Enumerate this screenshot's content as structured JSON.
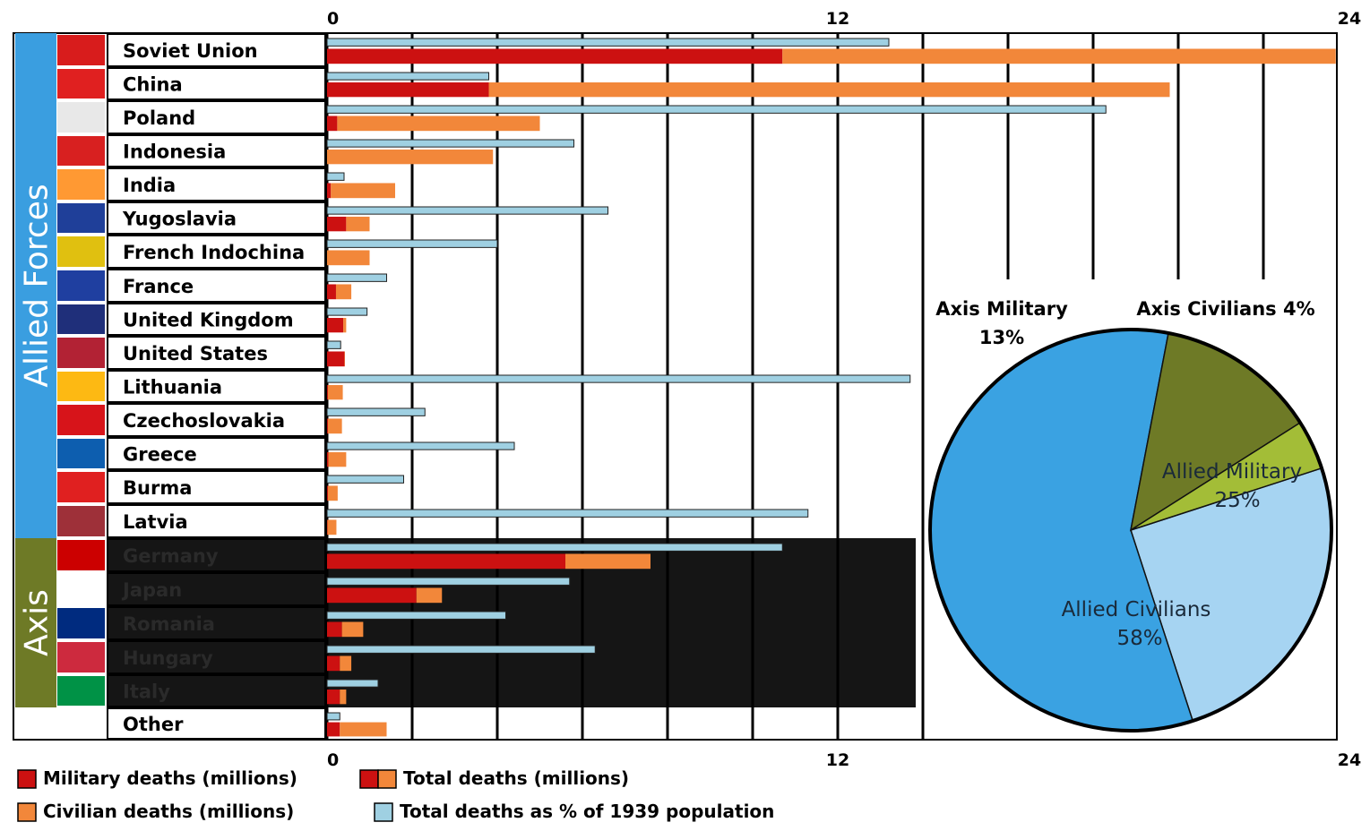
{
  "chart_data": [
    {
      "type": "bar",
      "orientation": "horizontal",
      "x_ticks": [
        "0",
        "12",
        "24"
      ],
      "xlim": [
        0,
        24
      ],
      "groups": [
        {
          "name": "Allied Forces",
          "color": "#3a9ee0"
        },
        {
          "name": "Axis",
          "color": "#6e7a26"
        }
      ],
      "categories": [
        "Soviet Union",
        "China",
        "Poland",
        "Indonesia",
        "India",
        "Yugoslavia",
        "French Indochina",
        "France",
        "United Kingdom",
        "United States",
        "Lithuania",
        "Czechoslovakia",
        "Greece",
        "Burma",
        "Latvia",
        "Germany",
        "Japan",
        "Romania",
        "Hungary",
        "Italy",
        "Other"
      ],
      "category_group": [
        "Allied Forces",
        "Allied Forces",
        "Allied Forces",
        "Allied Forces",
        "Allied Forces",
        "Allied Forces",
        "Allied Forces",
        "Allied Forces",
        "Allied Forces",
        "Allied Forces",
        "Allied Forces",
        "Allied Forces",
        "Allied Forces",
        "Allied Forces",
        "Allied Forces",
        "Axis",
        "Axis",
        "Axis",
        "Axis",
        "Axis",
        ""
      ],
      "series": [
        {
          "name": "Military deaths (millions)",
          "color": "#cc1111",
          "values": [
            10.7,
            3.8,
            0.24,
            0,
            0.09,
            0.45,
            0,
            0.21,
            0.38,
            0.41,
            0.02,
            0.02,
            0.03,
            0.02,
            0.01,
            5.6,
            2.1,
            0.35,
            0.3,
            0.3,
            0.3
          ]
        },
        {
          "name": "Civilian deaths (millions)",
          "color": "#f2873a",
          "values": [
            13.0,
            16.0,
            4.76,
            3.9,
            1.51,
            0.55,
            1.0,
            0.36,
            0.07,
            0.01,
            0.35,
            0.33,
            0.42,
            0.23,
            0.21,
            2.0,
            0.6,
            0.5,
            0.27,
            0.15,
            1.1
          ]
        },
        {
          "name": "Total deaths as % of 1939 population",
          "color": "#9fd0e2",
          "values": [
            13.2,
            3.8,
            18.3,
            5.8,
            0.4,
            6.6,
            4.0,
            1.4,
            0.94,
            0.32,
            13.7,
            2.3,
            4.4,
            1.8,
            11.3,
            10.7,
            5.7,
            4.2,
            6.3,
            1.2,
            0.3
          ]
        }
      ],
      "legend": [
        {
          "label": "Military deaths (millions)",
          "colors": [
            "#cc1111"
          ]
        },
        {
          "label": "Total deaths (millions)",
          "colors": [
            "#cc1111",
            "#f2873a"
          ]
        },
        {
          "label": "Civilian deaths (millions)",
          "colors": [
            "#f2873a"
          ]
        },
        {
          "label": "Total deaths as % of 1939 population",
          "colors": [
            "#9fd0e2"
          ]
        }
      ]
    },
    {
      "type": "pie",
      "slices": [
        {
          "label": "Allied Military",
          "value": 25,
          "text": "25%",
          "color": "#a6d4f2"
        },
        {
          "label": "Allied Civilians",
          "value": 58,
          "text": "58%",
          "color": "#3aa2e2"
        },
        {
          "label": "Axis Military",
          "value": 13,
          "text": "13%",
          "color": "#6e7a26"
        },
        {
          "label": "Axis Civilians",
          "value": 4,
          "text": "4%",
          "color": "#a3bd37"
        }
      ]
    }
  ]
}
